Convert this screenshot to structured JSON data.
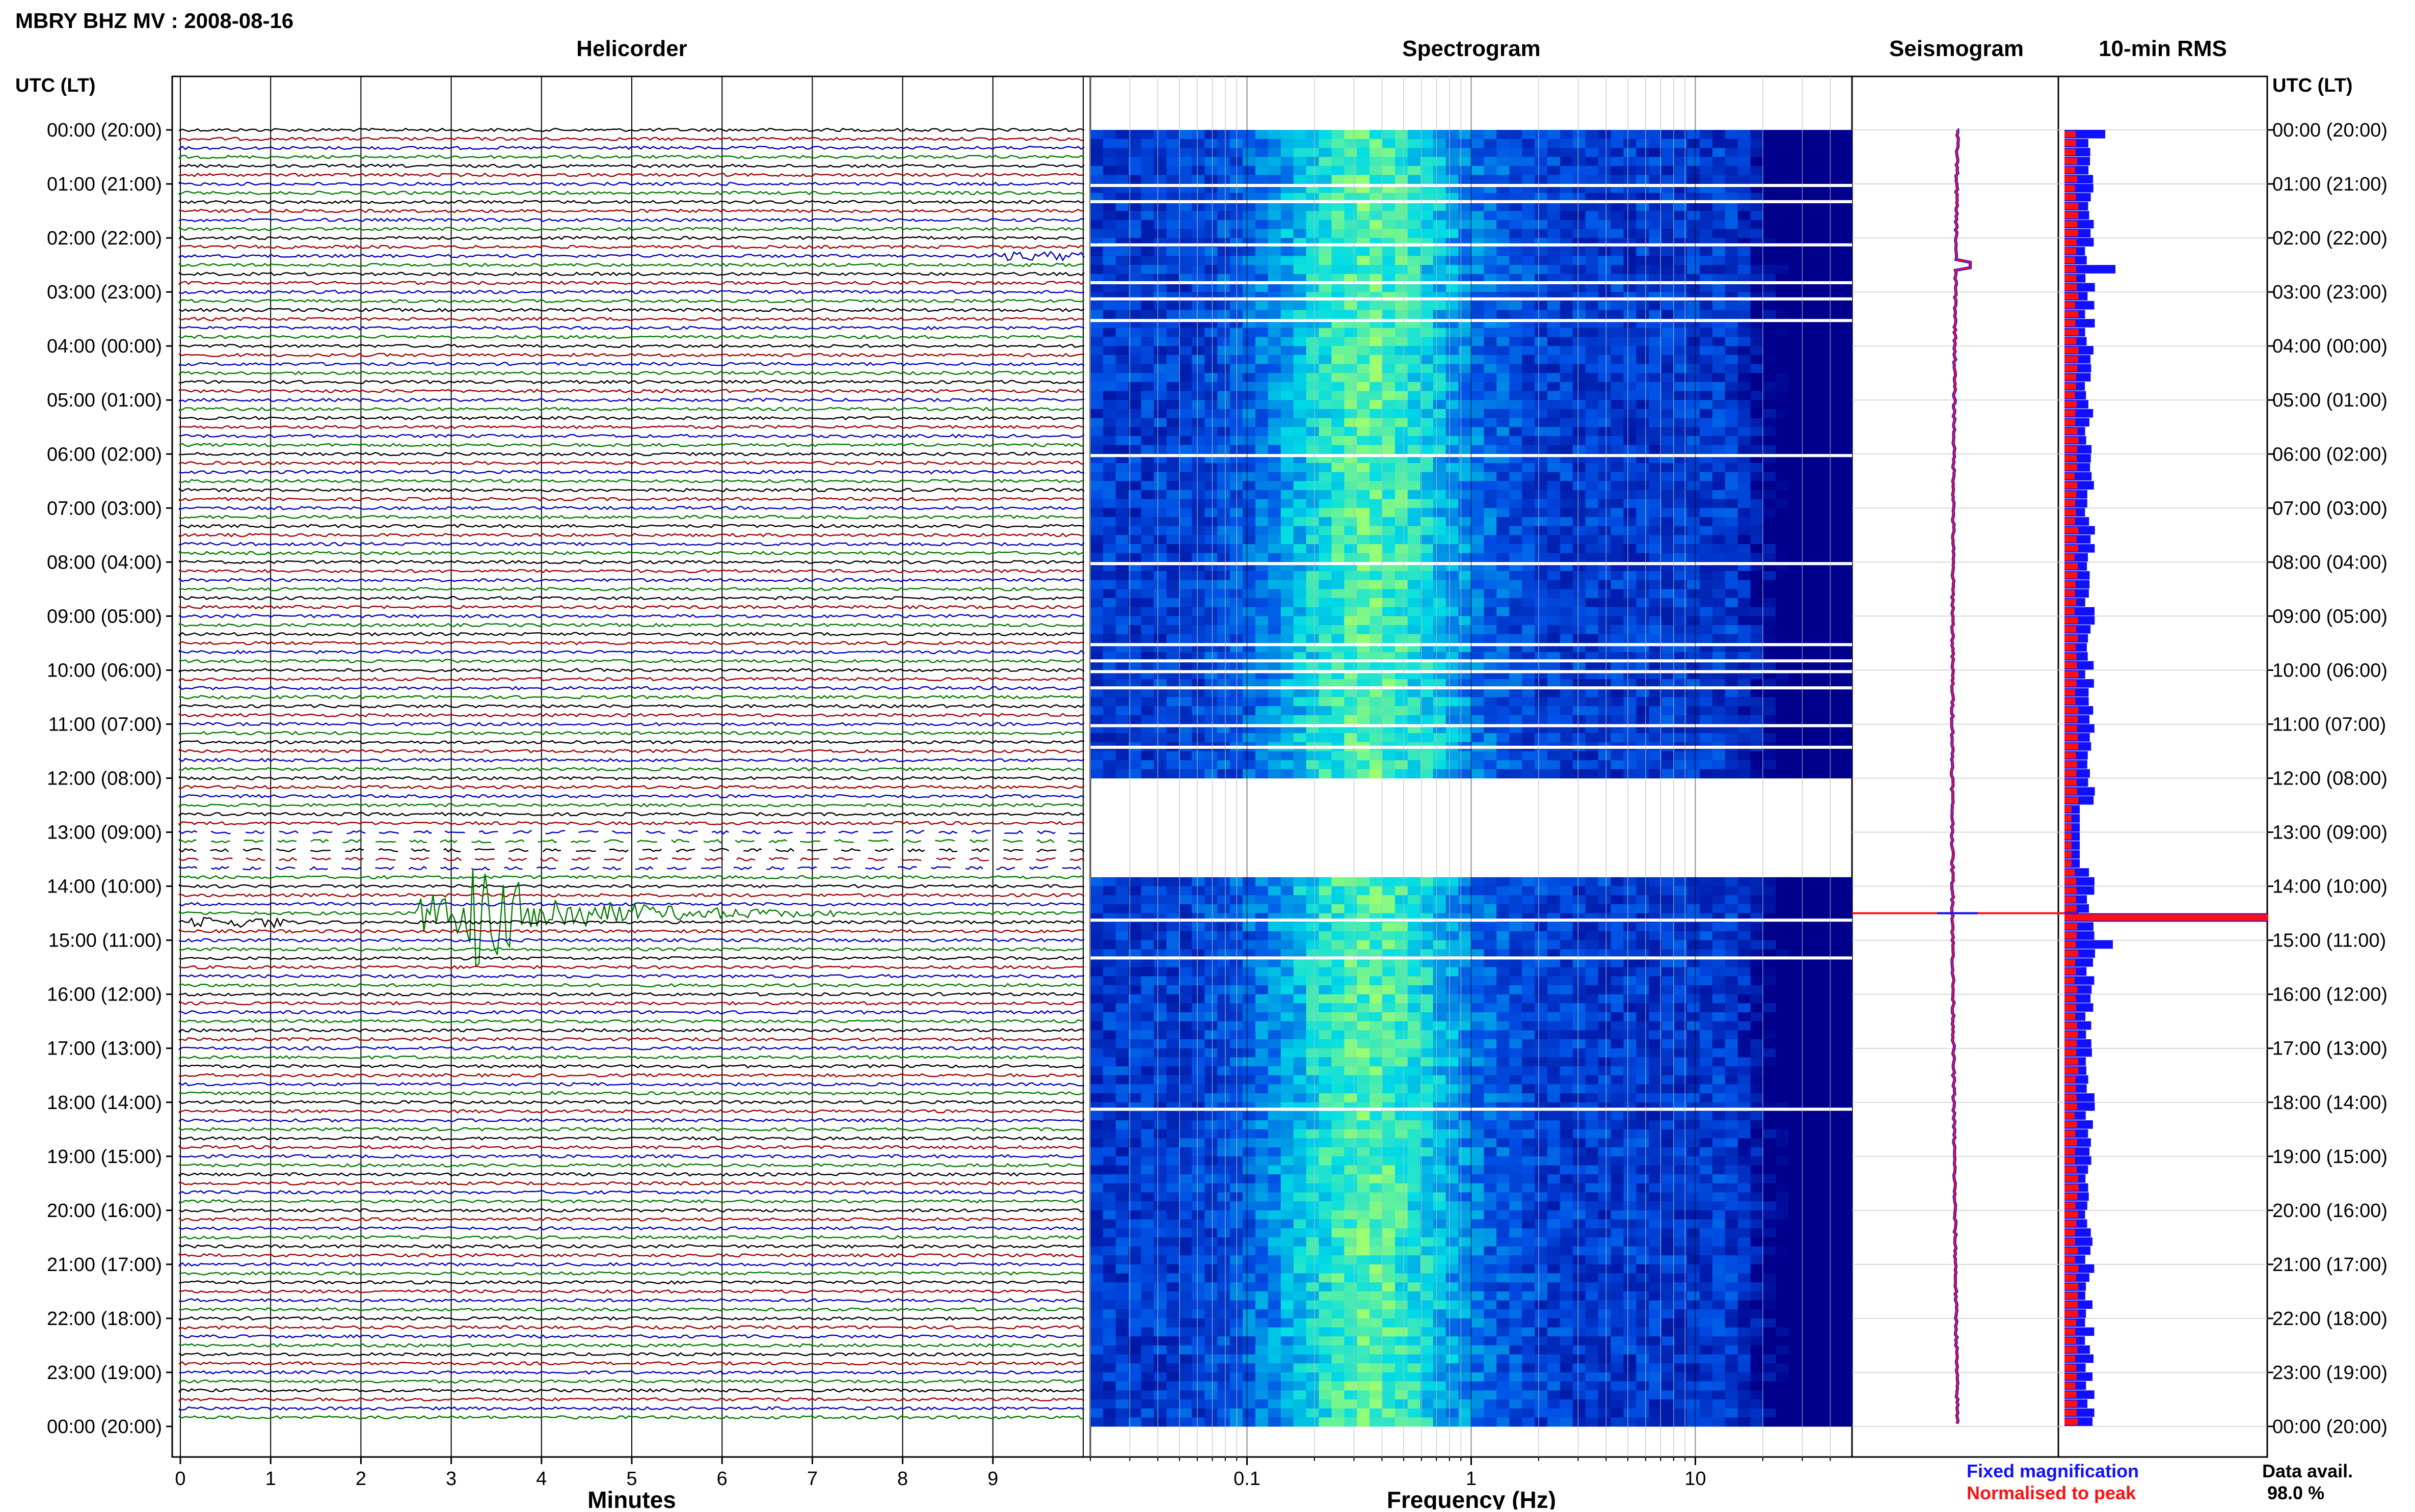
{
  "title": "MBRY BHZ MV : 2008-08-16",
  "colors": {
    "trace_cycle": [
      "#000000",
      "#a00000",
      "#0000c0",
      "#007a00"
    ],
    "fixed_magnification": "#1010ff",
    "normalised_to_peak": "#ff1010",
    "spectrogram_low": "#00008b",
    "spectrogram_mid": "#1e90ff",
    "spectrogram_high": "#7fff7f"
  },
  "panels": {
    "helicorder": "Helicorder",
    "spectrogram": "Spectrogram",
    "seismogram": "Seismogram",
    "rms": "10-min RMS"
  },
  "axis": {
    "time_header": "UTC (LT)",
    "time_labels": [
      "00:00 (20:00)",
      "01:00 (21:00)",
      "02:00 (22:00)",
      "03:00 (23:00)",
      "04:00 (00:00)",
      "05:00 (01:00)",
      "06:00 (02:00)",
      "07:00 (03:00)",
      "08:00 (04:00)",
      "09:00 (05:00)",
      "10:00 (06:00)",
      "11:00 (07:00)",
      "12:00 (08:00)",
      "13:00 (09:00)",
      "14:00 (10:00)",
      "15:00 (11:00)",
      "16:00 (12:00)",
      "17:00 (13:00)",
      "18:00 (14:00)",
      "19:00 (15:00)",
      "20:00 (16:00)",
      "21:00 (17:00)",
      "22:00 (18:00)",
      "23:00 (19:00)",
      "00:00 (20:00)"
    ],
    "minutes_label": "Minutes",
    "minutes_ticks": [
      "0",
      "1",
      "2",
      "3",
      "4",
      "5",
      "6",
      "7",
      "8",
      "9"
    ],
    "frequency_label": "Frequency (Hz)",
    "frequency_ticks": [
      "0.1",
      "1",
      "10"
    ]
  },
  "legend": {
    "fixed": "Fixed magnification",
    "normalised": "Normalised to peak"
  },
  "data_availability": {
    "label": "Data avail.",
    "value": "98.0 %"
  },
  "chart_data": {
    "type": "heatmap",
    "station": "MBRY BHZ MV",
    "date": "2008-08-16",
    "rows_per_hour": 6,
    "row_minutes": 10,
    "event": {
      "start_hour": 14.4,
      "minute_start": 2.6,
      "minute_end": 7.3,
      "peak_minute": 3.2
    },
    "gaps_hours": [
      13.0,
      13.1,
      13.2,
      13.3,
      13.4,
      13.5
    ],
    "spectrogram_freq_range_hz": [
      0.02,
      50
    ],
    "rms_spike_hour": 14.5
  }
}
